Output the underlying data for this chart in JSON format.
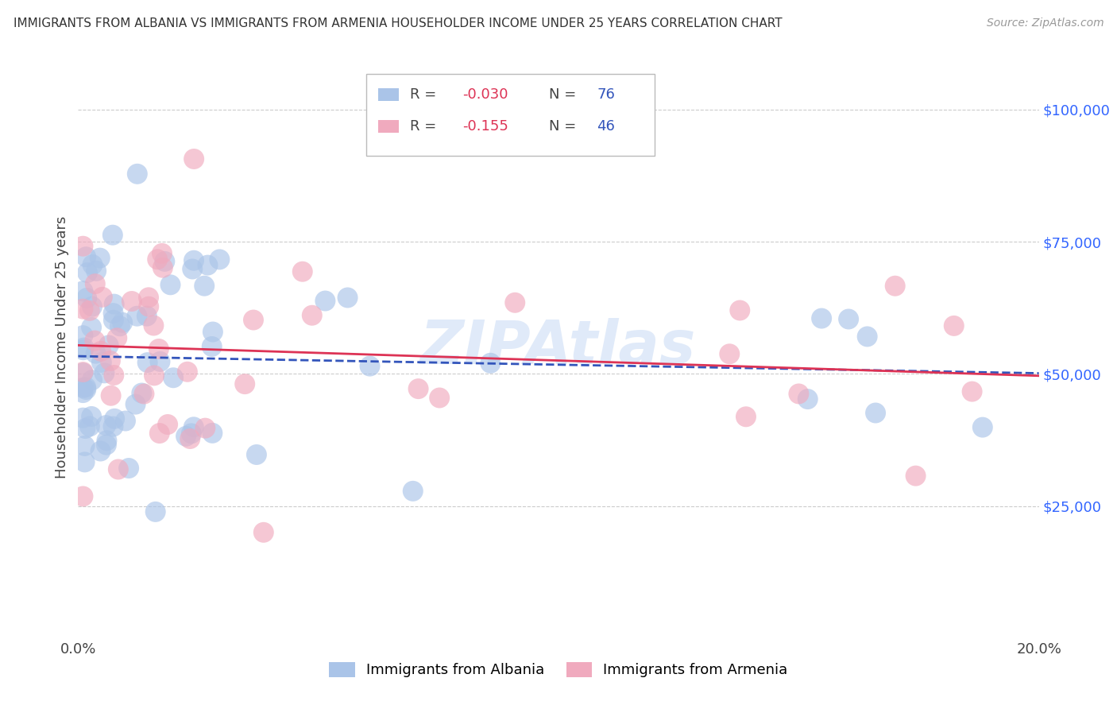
{
  "title": "IMMIGRANTS FROM ALBANIA VS IMMIGRANTS FROM ARMENIA HOUSEHOLDER INCOME UNDER 25 YEARS CORRELATION CHART",
  "source": "Source: ZipAtlas.com",
  "ylabel": "Householder Income Under 25 years",
  "xlim": [
    0.0,
    0.2
  ],
  "ylim": [
    0,
    110000
  ],
  "albania_R": -0.03,
  "albania_N": 76,
  "armenia_R": -0.155,
  "armenia_N": 46,
  "albania_color": "#aac4e8",
  "armenia_color": "#f0aabe",
  "albania_line_color": "#3355bb",
  "armenia_line_color": "#dd3355",
  "watermark_color": "#ccddf5",
  "background_color": "#ffffff",
  "grid_color": "#cccccc",
  "title_color": "#333333",
  "legend_R_color": "#dd3355",
  "legend_N_color": "#3355bb",
  "right_axis_color": "#3366ff",
  "albania_intercept": 52500,
  "albania_slope": -18000,
  "armenia_intercept": 54000,
  "armenia_slope": -30000
}
